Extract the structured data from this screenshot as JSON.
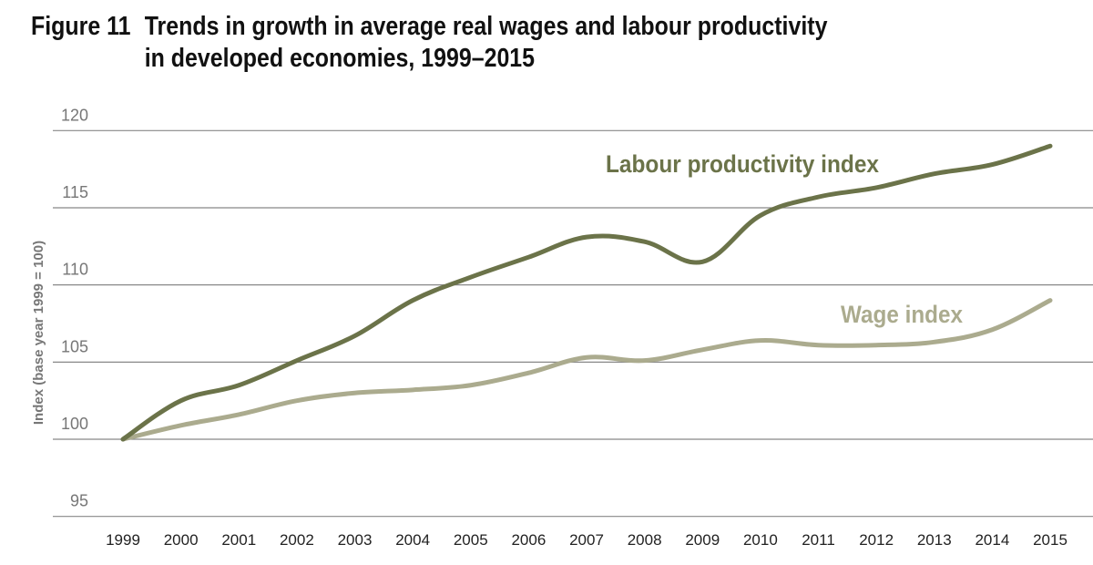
{
  "figure": {
    "number": "Figure 11",
    "title_line1": "Trends in growth in average real wages and labour productivity",
    "title_line2": "in developed economies, 1999–2015"
  },
  "chart_data": {
    "type": "line",
    "title": "Trends in growth in average real wages and labour productivity in developed economies, 1999–2015",
    "xlabel": "",
    "ylabel": "Index (base year 1999 = 100)",
    "ylim": [
      95,
      120
    ],
    "yticks": [
      "95",
      "100",
      "105",
      "110",
      "115",
      "120"
    ],
    "grid": "horizontal",
    "x": [
      "1999",
      "2000",
      "2001",
      "2002",
      "2003",
      "2004",
      "2005",
      "2006",
      "2007",
      "2008",
      "2009",
      "2010",
      "2011",
      "2012",
      "2013",
      "2014",
      "2015"
    ],
    "series": [
      {
        "name": "Labour productivity index",
        "color": "#6b7349",
        "values": [
          100,
          102.5,
          103.5,
          105.1,
          106.7,
          109.0,
          110.5,
          111.8,
          113.1,
          112.8,
          111.5,
          114.5,
          115.7,
          116.3,
          117.2,
          117.8,
          119.0
        ]
      },
      {
        "name": "Wage index",
        "color": "#abab8e",
        "values": [
          100,
          100.9,
          101.6,
          102.5,
          103.0,
          103.2,
          103.5,
          104.3,
          105.3,
          105.1,
          105.8,
          106.4,
          106.1,
          106.1,
          106.3,
          107.1,
          109.0
        ]
      }
    ]
  }
}
